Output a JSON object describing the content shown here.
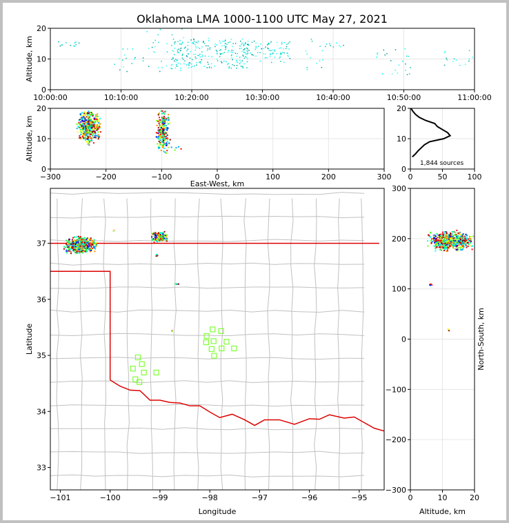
{
  "title": "Oklahoma LMA 1000-1100 UTC May 27, 2021",
  "colors": {
    "border": "#dd0000",
    "grid": "#e6e6e6",
    "county": "#c0c0c0",
    "station": "#7fff33",
    "scale": [
      "#0000ff",
      "#00a8ff",
      "#00ffff",
      "#00ff66",
      "#66ff00",
      "#ffff00",
      "#ff8800",
      "#ff0000",
      "#990000"
    ]
  },
  "chart_data": [
    {
      "panel": "time-height",
      "type": "scatter",
      "xlabel": "",
      "ylabel": "Altitude, km",
      "xlim": [
        "10:00:00",
        "11:00:00"
      ],
      "ylim": [
        0,
        20
      ],
      "xticks": [
        "10:00:00",
        "10:10:00",
        "10:20:00",
        "10:30:00",
        "10:40:00",
        "10:50:00",
        "11:00:00"
      ],
      "yticks": [
        "0",
        "10",
        "20"
      ],
      "clusters": [
        {
          "t_min": [
            0.5,
            4
          ],
          "alt": [
            14,
            16
          ],
          "n": 12
        },
        {
          "t_min": [
            9,
            12
          ],
          "alt": [
            5,
            17
          ],
          "n": 14
        },
        {
          "t_min": [
            13,
            20
          ],
          "alt": [
            6,
            20
          ],
          "n": 40
        },
        {
          "t_min": [
            17,
            28
          ],
          "alt": [
            7,
            17
          ],
          "n": 220
        },
        {
          "t_min": [
            27,
            34
          ],
          "alt": [
            9,
            16
          ],
          "n": 90
        },
        {
          "t_min": [
            36,
            39
          ],
          "alt": [
            6,
            17
          ],
          "n": 14
        },
        {
          "t_min": [
            39,
            42
          ],
          "alt": [
            14,
            16
          ],
          "n": 8
        },
        {
          "t_min": [
            46,
            51
          ],
          "alt": [
            5,
            14
          ],
          "n": 24
        },
        {
          "t_min": [
            55,
            60
          ],
          "alt": [
            8,
            13
          ],
          "n": 14
        }
      ]
    },
    {
      "panel": "east-west-height",
      "type": "scatter",
      "xlabel": "East-West, km",
      "ylabel": "Altitude, km",
      "xlim": [
        -300,
        300
      ],
      "ylim": [
        0,
        20
      ],
      "xticks": [
        "−300",
        "−200",
        "−100",
        "0",
        "100",
        "200",
        "300"
      ],
      "yticks": [
        "0",
        "10",
        "20"
      ],
      "clusters": [
        {
          "x": [
            -255,
            -210
          ],
          "alt": [
            8,
            20
          ],
          "n": 420
        },
        {
          "x": [
            -112,
            -85
          ],
          "alt": [
            5,
            20
          ],
          "n": 260
        },
        {
          "x": [
            -97,
            -60
          ],
          "alt": [
            6,
            8
          ],
          "n": 6
        }
      ]
    },
    {
      "panel": "altitude-histogram",
      "type": "line",
      "xlim": [
        0,
        100
      ],
      "ylim": [
        0,
        20
      ],
      "xticks": [
        "0",
        "50",
        "100"
      ],
      "yticks": [
        "0",
        "10",
        "20"
      ],
      "annotation": "1,844 sources",
      "alt_km": [
        4,
        5,
        6,
        7,
        8,
        9,
        10,
        11,
        12,
        13,
        14,
        15,
        16,
        17,
        18,
        19,
        20
      ],
      "count": [
        3,
        8,
        12,
        17,
        22,
        30,
        52,
        62,
        58,
        50,
        42,
        38,
        24,
        14,
        8,
        4,
        1
      ]
    },
    {
      "panel": "plan-view",
      "type": "scatter",
      "xlabel": "Longitude",
      "ylabel": "Latitude",
      "xlim": [
        -101.2,
        -94.5
      ],
      "ylim": [
        32.6,
        37.98
      ],
      "xticks": [
        "−101",
        "−100",
        "−99",
        "−98",
        "−97",
        "−96",
        "−95"
      ],
      "yticks": [
        "33",
        "34",
        "35",
        "36",
        "37"
      ],
      "clusters": [
        {
          "lon": [
            -100.95,
            -100.25
          ],
          "lat": [
            36.82,
            37.14
          ],
          "n": 420
        },
        {
          "lon": [
            -99.2,
            -98.85
          ],
          "lat": [
            37.02,
            37.22
          ],
          "n": 170
        },
        {
          "lon": [
            -98.72,
            -98.62
          ],
          "lat": [
            36.27,
            36.3
          ],
          "n": 8
        },
        {
          "lon": [
            -99.12,
            -99.04
          ],
          "lat": [
            36.75,
            36.84
          ],
          "n": 6
        },
        {
          "lon": [
            -99.95,
            -99.92
          ],
          "lat": [
            37.22,
            37.25
          ],
          "n": 3
        },
        {
          "lon": [
            -98.8,
            -98.76
          ],
          "lat": [
            35.44,
            35.46
          ],
          "n": 2
        }
      ],
      "stations": [
        [
          -97.95,
          35.47
        ],
        [
          -97.78,
          35.44
        ],
        [
          -98.07,
          35.35
        ],
        [
          -98.08,
          35.24
        ],
        [
          -97.93,
          35.26
        ],
        [
          -97.67,
          35.25
        ],
        [
          -97.97,
          35.12
        ],
        [
          -97.77,
          35.13
        ],
        [
          -97.52,
          35.13
        ],
        [
          -97.92,
          35.0
        ],
        [
          -99.45,
          34.97
        ],
        [
          -99.37,
          34.85
        ],
        [
          -99.55,
          34.77
        ],
        [
          -99.33,
          34.7
        ],
        [
          -99.08,
          34.7
        ],
        [
          -99.5,
          34.58
        ],
        [
          -99.42,
          34.53
        ]
      ]
    },
    {
      "panel": "north-south-height",
      "type": "scatter",
      "xlabel": "Altitude, km",
      "ylabel": "North-South, km",
      "xlim": [
        0,
        20
      ],
      "ylim": [
        -300,
        300
      ],
      "xticks": [
        "0",
        "10",
        "20"
      ],
      "yticks": [
        "−300",
        "−200",
        "−100",
        "0",
        "100",
        "200",
        "300"
      ],
      "clusters": [
        {
          "alt": [
            5,
            20
          ],
          "ns": [
            175,
            218
          ],
          "n": 560
        },
        {
          "alt": [
            5,
            7
          ],
          "ns": [
            107,
            112
          ],
          "n": 5
        },
        {
          "alt": [
            11,
            12
          ],
          "ns": [
            18,
            23
          ],
          "n": 3
        }
      ]
    }
  ]
}
